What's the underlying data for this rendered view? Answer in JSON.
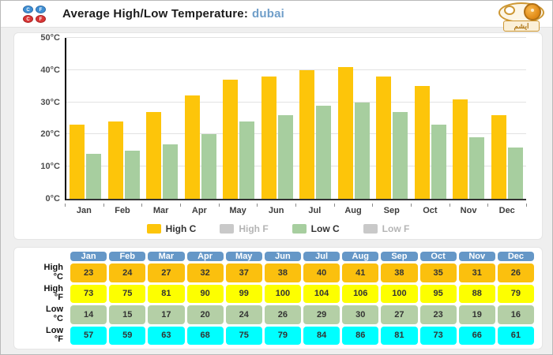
{
  "header": {
    "title": "Average High/Low Temperature:",
    "city": "dubai",
    "unit_icons": [
      "C",
      "F",
      "C",
      "F"
    ]
  },
  "logo": {
    "text": "ایشم"
  },
  "chart_data": {
    "type": "bar",
    "title": "Average High/Low Temperature: dubai",
    "categories": [
      "Jan",
      "Feb",
      "Mar",
      "Apr",
      "May",
      "Jun",
      "Jul",
      "Aug",
      "Sep",
      "Oct",
      "Nov",
      "Dec"
    ],
    "series": [
      {
        "name": "High C",
        "color": "#fdc50a",
        "visible": true,
        "values": [
          23,
          24,
          27,
          32,
          37,
          38,
          40,
          41,
          38,
          35,
          31,
          26
        ]
      },
      {
        "name": "High F",
        "color": "#c9c9c9",
        "visible": false,
        "values": [
          73,
          75,
          81,
          90,
          99,
          100,
          104,
          106,
          100,
          95,
          88,
          79
        ]
      },
      {
        "name": "Low C",
        "color": "#a7ce9f",
        "visible": true,
        "values": [
          14,
          15,
          17,
          20,
          24,
          26,
          29,
          30,
          27,
          23,
          19,
          16
        ]
      },
      {
        "name": "Low F",
        "color": "#c9c9c9",
        "visible": false,
        "values": [
          57,
          59,
          63,
          68,
          75,
          79,
          84,
          86,
          81,
          73,
          66,
          61
        ]
      }
    ],
    "legend": [
      {
        "label": "High C",
        "swatch": "#fdc50a",
        "active": true
      },
      {
        "label": "High F",
        "swatch": "#c9c9c9",
        "active": false
      },
      {
        "label": "Low C",
        "swatch": "#a7ce9f",
        "active": true
      },
      {
        "label": "Low F",
        "swatch": "#c9c9c9",
        "active": false
      }
    ],
    "yticks": [
      0,
      10,
      20,
      30,
      40,
      50
    ],
    "ytick_labels": [
      "0°C",
      "10°C",
      "20°C",
      "30°C",
      "40°C",
      "50°C"
    ],
    "ylim": [
      0,
      50
    ],
    "grid": true,
    "legend_position": "bottom"
  },
  "table": {
    "header_color": "#6597c7",
    "columns": [
      "Jan",
      "Feb",
      "Mar",
      "Apr",
      "May",
      "Jun",
      "Jul",
      "Aug",
      "Sep",
      "Oct",
      "Nov",
      "Dec"
    ],
    "rows": [
      {
        "label": "High",
        "unit": "°C",
        "color": "#fbc00e",
        "values": [
          23,
          24,
          27,
          32,
          37,
          38,
          40,
          41,
          38,
          35,
          31,
          26
        ]
      },
      {
        "label": "High",
        "unit": "°F",
        "color": "#fdff00",
        "values": [
          73,
          75,
          81,
          90,
          99,
          100,
          104,
          106,
          100,
          95,
          88,
          79
        ]
      },
      {
        "label": "Low",
        "unit": "°C",
        "color": "#b4cfa6",
        "values": [
          14,
          15,
          17,
          20,
          24,
          26,
          29,
          30,
          27,
          23,
          19,
          16
        ]
      },
      {
        "label": "Low",
        "unit": "°F",
        "color": "#00ffff",
        "values": [
          57,
          59,
          63,
          68,
          75,
          79,
          84,
          86,
          81,
          73,
          66,
          61
        ]
      }
    ]
  }
}
